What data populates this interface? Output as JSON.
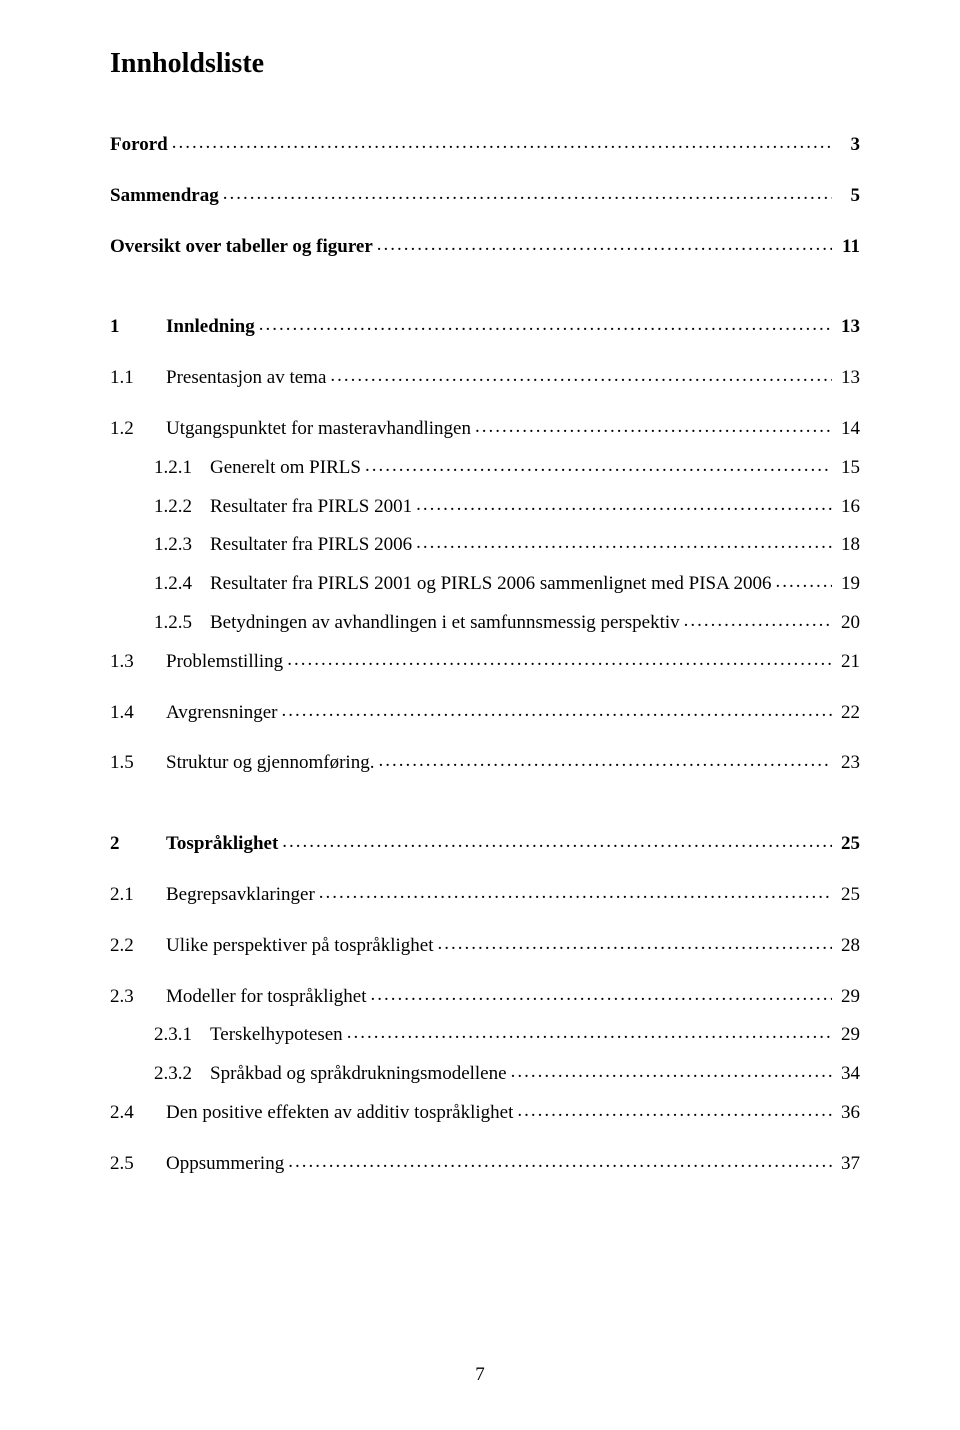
{
  "title": "Innholdsliste",
  "pageNumber": "7",
  "entries": [
    {
      "prefix": "",
      "label": "Forord",
      "page": "3",
      "bold": true,
      "indent": 0,
      "gap": "lg"
    },
    {
      "prefix": "",
      "label": "Sammendrag",
      "page": "5",
      "bold": true,
      "indent": 0,
      "gap": "lg"
    },
    {
      "prefix": "",
      "label": "Oversikt over tabeller og figurer",
      "page": "11",
      "bold": true,
      "indent": 0,
      "gap": "xl"
    },
    {
      "prefix": "1",
      "label": "Innledning",
      "page": "13",
      "bold": true,
      "indent": 0,
      "gap": "lg"
    },
    {
      "prefix": "1.1",
      "label": "Presentasjon av tema",
      "page": "13",
      "bold": false,
      "indent": 0,
      "gap": "lg"
    },
    {
      "prefix": "1.2",
      "label": "Utgangspunktet for masteravhandlingen",
      "page": "14",
      "bold": false,
      "indent": 0,
      "gap": "md"
    },
    {
      "prefix": "1.2.1",
      "label": "Generelt om PIRLS",
      "page": "15",
      "bold": false,
      "indent": 2,
      "gap": "md"
    },
    {
      "prefix": "1.2.2",
      "label": "Resultater fra PIRLS 2001",
      "page": "16",
      "bold": false,
      "indent": 2,
      "gap": "md"
    },
    {
      "prefix": "1.2.3",
      "label": "Resultater fra PIRLS 2006",
      "page": "18",
      "bold": false,
      "indent": 2,
      "gap": "md"
    },
    {
      "prefix": "1.2.4",
      "label": "Resultater fra PIRLS 2001 og PIRLS 2006 sammenlignet med PISA 2006",
      "page": "19",
      "bold": false,
      "indent": 2,
      "gap": "md"
    },
    {
      "prefix": "1.2.5",
      "label": "Betydningen av avhandlingen i et samfunnsmessig perspektiv",
      "page": "20",
      "bold": false,
      "indent": 2,
      "gap": "md"
    },
    {
      "prefix": "1.3",
      "label": "Problemstilling",
      "page": "21",
      "bold": false,
      "indent": 0,
      "gap": "lg"
    },
    {
      "prefix": "1.4",
      "label": "Avgrensninger",
      "page": "22",
      "bold": false,
      "indent": 0,
      "gap": "lg"
    },
    {
      "prefix": "1.5",
      "label": "Struktur og gjennomføring.",
      "page": "23",
      "bold": false,
      "indent": 0,
      "gap": "xl"
    },
    {
      "prefix": "2",
      "label": "Tospråklighet",
      "page": "25",
      "bold": true,
      "indent": 0,
      "gap": "lg"
    },
    {
      "prefix": "2.1",
      "label": "Begrepsavklaringer",
      "page": "25",
      "bold": false,
      "indent": 0,
      "gap": "lg"
    },
    {
      "prefix": "2.2",
      "label": "Ulike perspektiver på tospråklighet",
      "page": "28",
      "bold": false,
      "indent": 0,
      "gap": "lg"
    },
    {
      "prefix": "2.3",
      "label": "Modeller for tospråklighet",
      "page": "29",
      "bold": false,
      "indent": 0,
      "gap": "md"
    },
    {
      "prefix": "2.3.1",
      "label": "Terskelhypotesen",
      "page": "29",
      "bold": false,
      "indent": 2,
      "gap": "md"
    },
    {
      "prefix": "2.3.2",
      "label": "Språkbad og språkdrukningsmodellene",
      "page": "34",
      "bold": false,
      "indent": 2,
      "gap": "md"
    },
    {
      "prefix": "2.4",
      "label": "Den positive effekten av additiv tospråklighet",
      "page": "36",
      "bold": false,
      "indent": 0,
      "gap": "lg"
    },
    {
      "prefix": "2.5",
      "label": "Oppsummering",
      "page": "37",
      "bold": false,
      "indent": 0,
      "gap": "lg"
    }
  ]
}
